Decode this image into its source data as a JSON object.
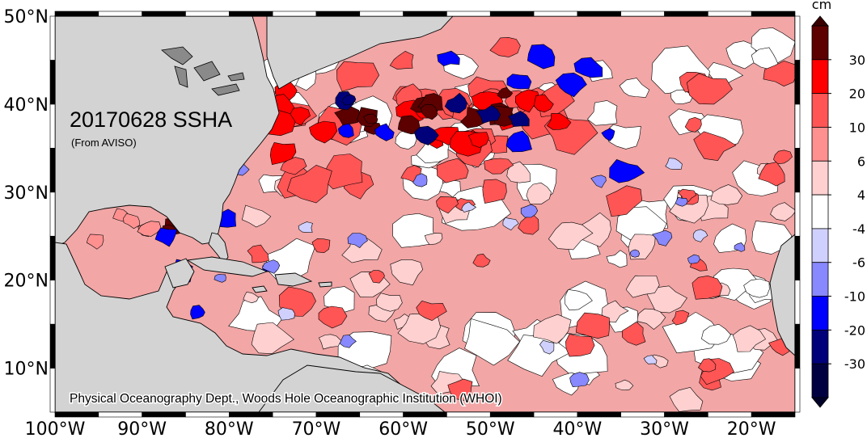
{
  "map": {
    "title": "20170628 SSHA",
    "source": "(From AVISO)",
    "credit": "Physical Oceanography Dept., Woods Hole Oceanographic Institution (WHOI)",
    "lon_labels": [
      "100°W",
      "90°W",
      "80°W",
      "70°W",
      "60°W",
      "50°W",
      "40°W",
      "30°W",
      "20°W"
    ],
    "lat_labels": [
      "50°N",
      "40°N",
      "30°N",
      "20°N",
      "10°N"
    ],
    "lon_range": [
      -100,
      -15
    ],
    "lat_range": [
      5,
      50
    ],
    "land_color": "#d3d3d3",
    "ocean_background": "#ffffff"
  },
  "colorbar": {
    "unit": "cm",
    "labels": [
      "30",
      "20",
      "10",
      "6",
      "4",
      "-4",
      "-6",
      "-10",
      "-20",
      "-30"
    ],
    "colors": [
      "#5c0000",
      "#ff0000",
      "#ff5555",
      "#ff9090",
      "#ffd0d0",
      "#ffffff",
      "#d0d0ff",
      "#8888ff",
      "#0000ff",
      "#00007a",
      "#000040"
    ],
    "top_arrow_color": "#3a0000",
    "bottom_arrow_color": "#000028"
  }
}
